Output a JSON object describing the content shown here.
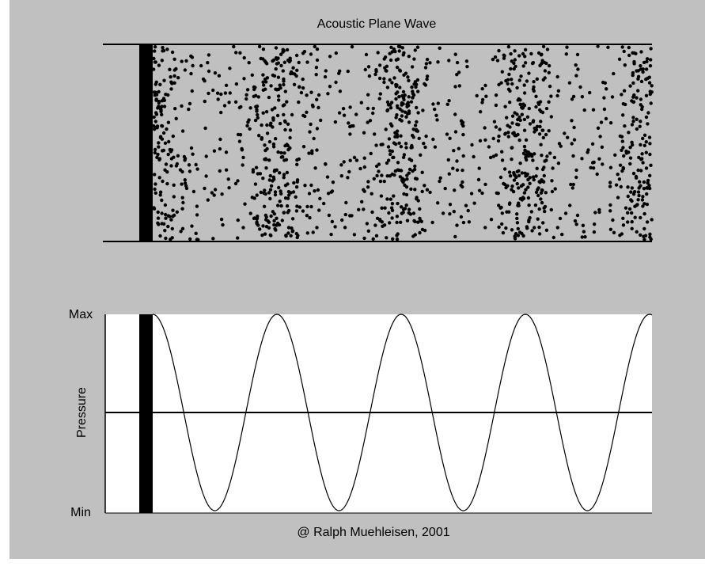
{
  "title": "Acoustic Plane Wave",
  "pressure_axis": {
    "label": "Pressure",
    "max": "Max",
    "min": "Min"
  },
  "credit": "@ Ralph Muehleisen, 2001"
}
